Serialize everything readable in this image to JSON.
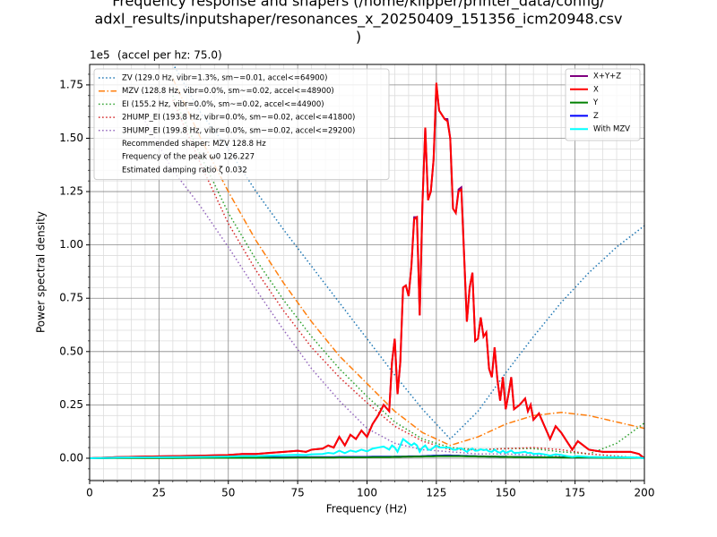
{
  "chart_data": {
    "type": "line",
    "title_lines": [
      "Frequency response and shapers (/home/klipper/printer_data/config/",
      "adxl_results/inputshaper/resonances_x_20250409_151356_icm20948.csv",
      ")"
    ],
    "subtitle": "(accel per hz: 75.0)",
    "offset_text": "1e5",
    "x_label": "Frequency (Hz)",
    "y_label": "Power spectral density",
    "xlim": [
      0,
      200
    ],
    "ylim": [
      -0.105,
      1.846
    ],
    "xticks": [
      0,
      25,
      50,
      75,
      100,
      125,
      150,
      175,
      200
    ],
    "yticks": [
      {
        "value": 0,
        "label": "0.00"
      },
      {
        "value": 0.25,
        "label": "0.25"
      },
      {
        "value": 0.5,
        "label": "0.50"
      },
      {
        "value": 0.75,
        "label": "0.75"
      },
      {
        "value": 1,
        "label": "1.00"
      },
      {
        "value": 1.25,
        "label": "1.25"
      },
      {
        "value": 1.5,
        "label": "1.50"
      },
      {
        "value": 1.75,
        "label": "1.75"
      }
    ],
    "grid": true,
    "minor_grid": true,
    "legend": "upper right",
    "x": [
      0,
      10,
      20,
      30,
      40,
      50,
      55,
      60,
      65,
      70,
      75,
      78,
      80,
      84,
      86,
      88,
      90,
      92,
      94,
      96,
      98,
      100,
      102,
      104,
      106,
      108,
      109,
      110,
      111,
      112,
      113,
      114,
      115,
      116,
      117,
      118,
      119,
      120,
      121,
      122,
      123,
      124,
      125,
      126,
      128,
      129,
      130,
      131,
      132,
      133,
      134,
      136,
      137,
      138,
      139,
      140,
      141,
      142,
      143,
      144,
      145,
      146,
      147,
      148,
      149,
      150,
      151,
      152,
      153,
      155,
      157,
      158,
      159,
      160,
      162,
      164,
      166,
      168,
      170,
      172,
      174,
      176,
      178,
      180,
      185,
      190,
      195,
      198,
      200
    ],
    "series": [
      {
        "name": "X+Y+Z",
        "color": "#800080",
        "values": [
          0,
          0.005,
          0.008,
          0.01,
          0.012,
          0.015,
          0.02,
          0.02,
          0.025,
          0.03,
          0.035,
          0.03,
          0.04,
          0.045,
          0.06,
          0.05,
          0.1,
          0.06,
          0.11,
          0.09,
          0.13,
          0.1,
          0.16,
          0.2,
          0.25,
          0.22,
          0.45,
          0.56,
          0.3,
          0.45,
          0.8,
          0.81,
          0.76,
          0.9,
          1.13,
          1.13,
          0.67,
          1.2,
          1.55,
          1.21,
          1.25,
          1.4,
          1.75,
          1.63,
          1.59,
          1.59,
          1.5,
          1.17,
          1.15,
          1.26,
          1.27,
          0.64,
          0.8,
          0.87,
          0.55,
          0.56,
          0.66,
          0.57,
          0.59,
          0.42,
          0.38,
          0.52,
          0.37,
          0.27,
          0.38,
          0.23,
          0.3,
          0.38,
          0.23,
          0.25,
          0.28,
          0.22,
          0.25,
          0.18,
          0.21,
          0.15,
          0.09,
          0.15,
          0.12,
          0.08,
          0.04,
          0.08,
          0.06,
          0.04,
          0.03,
          0.03,
          0.03,
          0.02,
          0
        ]
      },
      {
        "name": "X",
        "color": "#ff0000",
        "values": [
          0,
          0.005,
          0.008,
          0.01,
          0.012,
          0.015,
          0.02,
          0.02,
          0.025,
          0.03,
          0.035,
          0.03,
          0.04,
          0.045,
          0.06,
          0.05,
          0.1,
          0.06,
          0.11,
          0.09,
          0.13,
          0.1,
          0.16,
          0.2,
          0.25,
          0.22,
          0.45,
          0.56,
          0.3,
          0.45,
          0.8,
          0.81,
          0.76,
          0.9,
          1.12,
          1.13,
          0.67,
          1.2,
          1.55,
          1.21,
          1.25,
          1.4,
          1.76,
          1.63,
          1.59,
          1.58,
          1.5,
          1.17,
          1.15,
          1.25,
          1.26,
          0.64,
          0.8,
          0.87,
          0.55,
          0.56,
          0.66,
          0.57,
          0.59,
          0.42,
          0.38,
          0.52,
          0.37,
          0.27,
          0.38,
          0.23,
          0.3,
          0.38,
          0.23,
          0.25,
          0.28,
          0.22,
          0.25,
          0.18,
          0.21,
          0.15,
          0.09,
          0.15,
          0.12,
          0.08,
          0.04,
          0.08,
          0.06,
          0.04,
          0.03,
          0.03,
          0.03,
          0.02,
          0
        ]
      },
      {
        "name": "Y",
        "color": "#008000",
        "values": [
          0,
          0.001,
          0.001,
          0.001,
          0.002,
          0.002,
          0.002,
          0.002,
          0.002,
          0.002,
          0.003,
          0.003,
          0.003,
          0.003,
          0.003,
          0.003,
          0.004,
          0.004,
          0.004,
          0.004,
          0.004,
          0.004,
          0.005,
          0.005,
          0.005,
          0.005,
          0.006,
          0.006,
          0.006,
          0.006,
          0.007,
          0.007,
          0.007,
          0.007,
          0.008,
          0.008,
          0.008,
          0.008,
          0.009,
          0.009,
          0.009,
          0.009,
          0.01,
          0.01,
          0.01,
          0.01,
          0.01,
          0.01,
          0.01,
          0.01,
          0.01,
          0.009,
          0.009,
          0.009,
          0.009,
          0.008,
          0.008,
          0.008,
          0.008,
          0.007,
          0.007,
          0.007,
          0.007,
          0.006,
          0.006,
          0.006,
          0.006,
          0.006,
          0.005,
          0.005,
          0.005,
          0.005,
          0.005,
          0.004,
          0.004,
          0.004,
          0.004,
          0.004,
          0.003,
          0.003,
          0.003,
          0.003,
          0.003,
          0.003,
          0.002,
          0.002,
          0.002,
          0.002,
          0.001
        ]
      },
      {
        "name": "Z",
        "color": "#0000ff",
        "values": [
          0,
          0.002,
          0.003,
          0.003,
          0.003,
          0.004,
          0.004,
          0.004,
          0.004,
          0.004,
          0.005,
          0.005,
          0.005,
          0.005,
          0.005,
          0.005,
          0.006,
          0.006,
          0.006,
          0.006,
          0.006,
          0.006,
          0.007,
          0.007,
          0.007,
          0.007,
          0.007,
          0.008,
          0.008,
          0.008,
          0.008,
          0.008,
          0.009,
          0.009,
          0.009,
          0.009,
          0.009,
          0.01,
          0.01,
          0.011,
          0.011,
          0.012,
          0.012,
          0.012,
          0.013,
          0.013,
          0.013,
          0.012,
          0.012,
          0.012,
          0.011,
          0.011,
          0.01,
          0.01,
          0.01,
          0.009,
          0.009,
          0.009,
          0.008,
          0.008,
          0.008,
          0.008,
          0.007,
          0.007,
          0.007,
          0.007,
          0.006,
          0.006,
          0.006,
          0.006,
          0.005,
          0.005,
          0.005,
          0.005,
          0.005,
          0.004,
          0.004,
          0.004,
          0.004,
          0.004,
          0.003,
          0.003,
          0.003,
          0.003,
          0.003,
          0.002,
          0.002,
          0.002,
          0.001
        ]
      },
      {
        "name": "With MZV",
        "color": "#00ffff",
        "values": [
          0,
          0.003,
          0.004,
          0.005,
          0.006,
          0.008,
          0.01,
          0.01,
          0.012,
          0.014,
          0.016,
          0.015,
          0.018,
          0.02,
          0.025,
          0.022,
          0.035,
          0.024,
          0.036,
          0.03,
          0.04,
          0.032,
          0.045,
          0.05,
          0.055,
          0.04,
          0.06,
          0.05,
          0.03,
          0.06,
          0.09,
          0.08,
          0.07,
          0.06,
          0.07,
          0.06,
          0.03,
          0.05,
          0.06,
          0.04,
          0.04,
          0.05,
          0.06,
          0.05,
          0.05,
          0.05,
          0.048,
          0.04,
          0.04,
          0.045,
          0.046,
          0.03,
          0.04,
          0.045,
          0.035,
          0.036,
          0.042,
          0.038,
          0.04,
          0.032,
          0.03,
          0.04,
          0.03,
          0.026,
          0.035,
          0.025,
          0.03,
          0.036,
          0.025,
          0.026,
          0.03,
          0.024,
          0.026,
          0.02,
          0.022,
          0.018,
          0.012,
          0.018,
          0.015,
          0.01,
          0.006,
          0.01,
          0.008,
          0.006,
          0.005,
          0.005,
          0.004,
          0.003,
          0
        ]
      }
    ],
    "shaper_x": [
      20,
      30,
      40,
      50,
      60,
      70,
      80,
      90,
      100,
      110,
      120,
      130,
      140,
      150,
      160,
      170,
      180,
      190,
      200
    ],
    "shaper_series": [
      {
        "name": "ZV (129.0 Hz, vibr=1.3%, sm~=0.01, accel<=64900)",
        "color": "#1f77b4",
        "style": "dotted",
        "values": [
          null,
          1.85,
          1.62,
          1.45,
          1.25,
          1.07,
          0.9,
          0.73,
          0.56,
          0.39,
          0.23,
          0.09,
          0.22,
          0.4,
          0.57,
          0.73,
          0.87,
          0.99,
          1.09
        ]
      },
      {
        "name": "MZV (128.8 Hz, vibr=0.0%, sm~=0.02, accel<=48900)",
        "color": "#ff7f0e",
        "style": "dashdot",
        "values": [
          null,
          1.78,
          1.5,
          1.25,
          1.02,
          0.82,
          0.64,
          0.48,
          0.35,
          0.22,
          0.12,
          0.06,
          0.1,
          0.16,
          0.2,
          0.215,
          0.2,
          0.17,
          0.14
        ]
      },
      {
        "name": "EI (155.2 Hz, vibr=0.0%, sm~=0.02, accel<=44900)",
        "color": "#2ca02c",
        "style": "dotted",
        "values": [
          null,
          1.7,
          1.42,
          1.15,
          0.93,
          0.74,
          0.57,
          0.42,
          0.29,
          0.17,
          0.09,
          0.05,
          0.04,
          0.045,
          0.045,
          0.03,
          0.02,
          0.07,
          0.165
        ]
      },
      {
        "name": "2HUMP_EI (193.8 Hz, vibr=0.0%, sm~=0.02, accel<=41800)",
        "color": "#d62728",
        "style": "dotted",
        "values": [
          null,
          1.68,
          1.38,
          1.1,
          0.88,
          0.69,
          0.52,
          0.38,
          0.26,
          0.15,
          0.08,
          0.04,
          0.04,
          0.045,
          0.05,
          0.04,
          0.02,
          0.01,
          0
        ]
      },
      {
        "name": "3HUMP_EI (199.8 Hz, vibr=0.0%, sm~=0.02, accel<=29200)",
        "color": "#9467bd",
        "style": "dotted",
        "values": [
          1.58,
          1.35,
          1.18,
          0.99,
          0.79,
          0.6,
          0.42,
          0.27,
          0.14,
          0.07,
          0.04,
          0.03,
          0.02,
          0.02,
          0.015,
          0.01,
          0.005,
          0.005,
          0.005
        ]
      }
    ],
    "legend_notes": [
      "Recommended shaper: MZV 128.8 Hz",
      "Frequency of the peak ω0 126.227",
      "Estimated damping ratio ζ 0.032"
    ]
  }
}
